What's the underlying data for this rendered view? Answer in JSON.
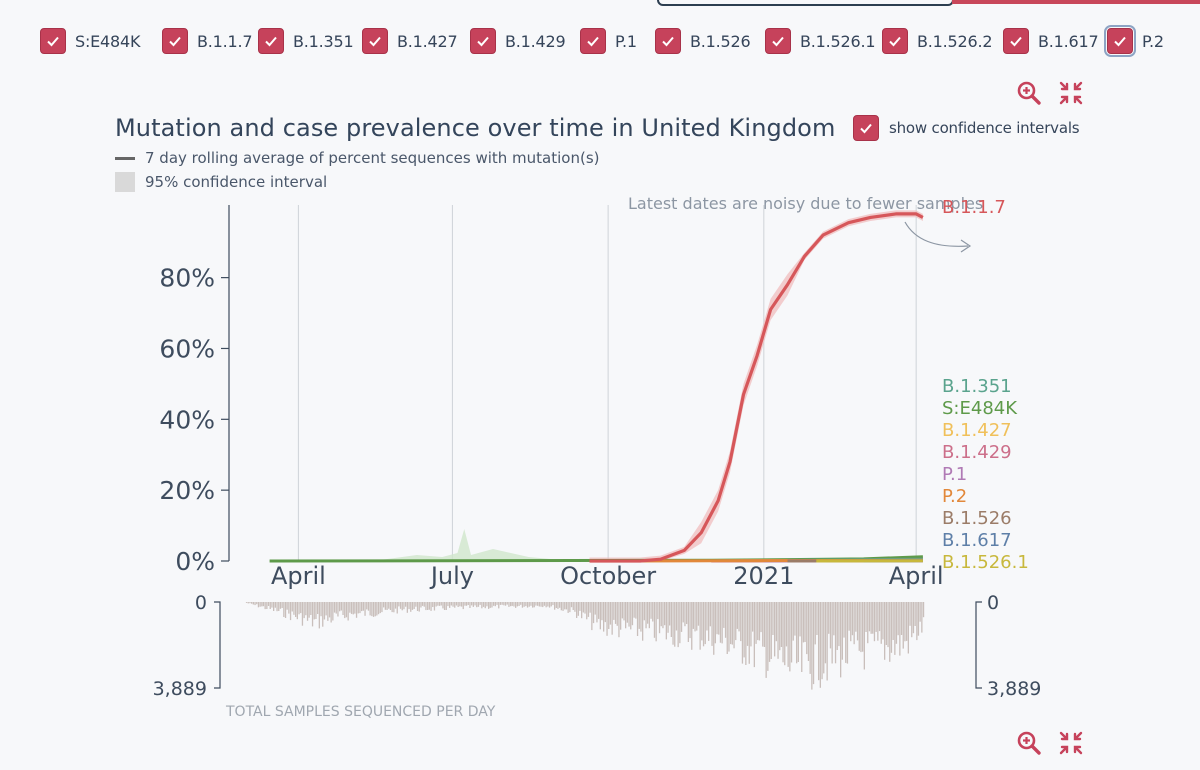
{
  "filters": [
    {
      "label": "S:E484K",
      "checked": true
    },
    {
      "label": "B.1.1.7",
      "checked": true
    },
    {
      "label": "B.1.351",
      "checked": true
    },
    {
      "label": "B.1.427",
      "checked": true
    },
    {
      "label": "B.1.429",
      "checked": true
    },
    {
      "label": "P.1",
      "checked": true
    },
    {
      "label": "B.1.526",
      "checked": true
    },
    {
      "label": "B.1.526.1",
      "checked": true
    },
    {
      "label": "B.1.526.2",
      "checked": true
    },
    {
      "label": "B.1.617",
      "checked": true
    },
    {
      "label": "P.2",
      "checked": true
    }
  ],
  "header": {
    "title": "Mutation and case prevalence over time in United Kingdom",
    "ci_toggle_label": "show confidence intervals",
    "legend_line_label": "7 day rolling average of percent sequences with mutation(s)",
    "legend_ci_label": "95% confidence interval"
  },
  "colors": {
    "accent": "#c6425b",
    "B.1.1.7": "#d6575a",
    "S:E484K": "#5e9a4a",
    "B.1.351": "#5aa38d",
    "B.1.427": "#f0c05a",
    "B.1.429": "#cc6f8a",
    "P.1": "#b07ab5",
    "P.2": "#e2883a",
    "B.1.526": "#9b7c68",
    "B.1.617": "#5e7fa8",
    "B.1.526.1": "#c8b83c"
  },
  "chart_data": {
    "type": "line",
    "title": "Mutation and case prevalence over time in United Kingdom",
    "ylabel": "percent sequences with mutation(s)",
    "ylim": [
      0,
      100
    ],
    "yticks": [
      "0%",
      "20%",
      "40%",
      "60%",
      "80%"
    ],
    "xticks": [
      "April",
      "July",
      "October",
      "2021",
      "April"
    ],
    "annotation": "Latest dates are noisy due to fewer samples",
    "series": [
      {
        "name": "B.1.1.7",
        "x": [
          "2020-09-20",
          "2020-10-20",
          "2020-11-01",
          "2020-11-15",
          "2020-11-25",
          "2020-12-05",
          "2020-12-12",
          "2020-12-20",
          "2020-12-28",
          "2021-01-05",
          "2021-01-15",
          "2021-01-25",
          "2021-02-05",
          "2021-02-20",
          "2021-03-05",
          "2021-03-20",
          "2021-04-01",
          "2021-04-05"
        ],
        "values": [
          0,
          0,
          0.5,
          3,
          8,
          17,
          28,
          47,
          58,
          71,
          78,
          86,
          92,
          95.5,
          97,
          98,
          98,
          97
        ]
      },
      {
        "name": "S:E484K",
        "x": [
          "2020-03-15",
          "2020-12-01",
          "2021-03-01",
          "2021-04-05"
        ],
        "values": [
          0,
          0.2,
          0.6,
          1.2
        ]
      },
      {
        "name": "B.1.351",
        "x": [
          "2020-12-01",
          "2021-04-05"
        ],
        "values": [
          0,
          0.5
        ]
      },
      {
        "name": "B.1.427",
        "x": [
          "2020-12-01",
          "2021-04-05"
        ],
        "values": [
          0,
          0.1
        ]
      },
      {
        "name": "B.1.429",
        "x": [
          "2020-12-01",
          "2021-04-05"
        ],
        "values": [
          0,
          0.1
        ]
      },
      {
        "name": "P.1",
        "x": [
          "2021-01-01",
          "2021-04-05"
        ],
        "values": [
          0,
          0.1
        ]
      },
      {
        "name": "P.2",
        "x": [
          "2020-10-15",
          "2021-04-05"
        ],
        "values": [
          0,
          0.2
        ]
      },
      {
        "name": "B.1.526",
        "x": [
          "2021-01-15",
          "2021-04-05"
        ],
        "values": [
          0,
          0.1
        ]
      },
      {
        "name": "B.1.617",
        "x": [
          "2021-03-01",
          "2021-04-05"
        ],
        "values": [
          0,
          0.1
        ]
      },
      {
        "name": "B.1.526.1",
        "x": [
          "2021-02-01",
          "2021-04-05"
        ],
        "values": [
          0,
          0.05
        ]
      }
    ],
    "series_labels": [
      "B.1.1.7",
      "B.1.351",
      "S:E484K",
      "B.1.427",
      "B.1.429",
      "P.1",
      "P.2",
      "B.1.526",
      "B.1.617",
      "B.1.526.1"
    ],
    "samples_chart": {
      "label": "TOTAL SAMPLES SEQUENCED PER DAY",
      "max_label": "3,889",
      "zero_label": "0",
      "max": 3889,
      "x_range": [
        "2020-03-01",
        "2021-04-05"
      ],
      "envelope": [
        {
          "x": "2020-03-01",
          "value": 50
        },
        {
          "x": "2020-03-20",
          "value": 500
        },
        {
          "x": "2020-04-10",
          "value": 1100
        },
        {
          "x": "2020-05-01",
          "value": 700
        },
        {
          "x": "2020-06-01",
          "value": 420
        },
        {
          "x": "2020-07-01",
          "value": 320
        },
        {
          "x": "2020-08-01",
          "value": 250
        },
        {
          "x": "2020-08-25",
          "value": 200
        },
        {
          "x": "2020-09-10",
          "value": 500
        },
        {
          "x": "2020-09-25",
          "value": 1300
        },
        {
          "x": "2020-10-15",
          "value": 1500
        },
        {
          "x": "2020-11-05",
          "value": 1700
        },
        {
          "x": "2020-11-25",
          "value": 1900
        },
        {
          "x": "2020-12-10",
          "value": 2200
        },
        {
          "x": "2020-12-25",
          "value": 2600
        },
        {
          "x": "2021-01-10",
          "value": 3200
        },
        {
          "x": "2021-01-25",
          "value": 3500
        },
        {
          "x": "2021-02-08",
          "value": 3100
        },
        {
          "x": "2021-02-25",
          "value": 2700
        },
        {
          "x": "2021-03-10",
          "value": 2500
        },
        {
          "x": "2021-03-25",
          "value": 2300
        },
        {
          "x": "2021-04-05",
          "value": 1300
        }
      ]
    }
  }
}
